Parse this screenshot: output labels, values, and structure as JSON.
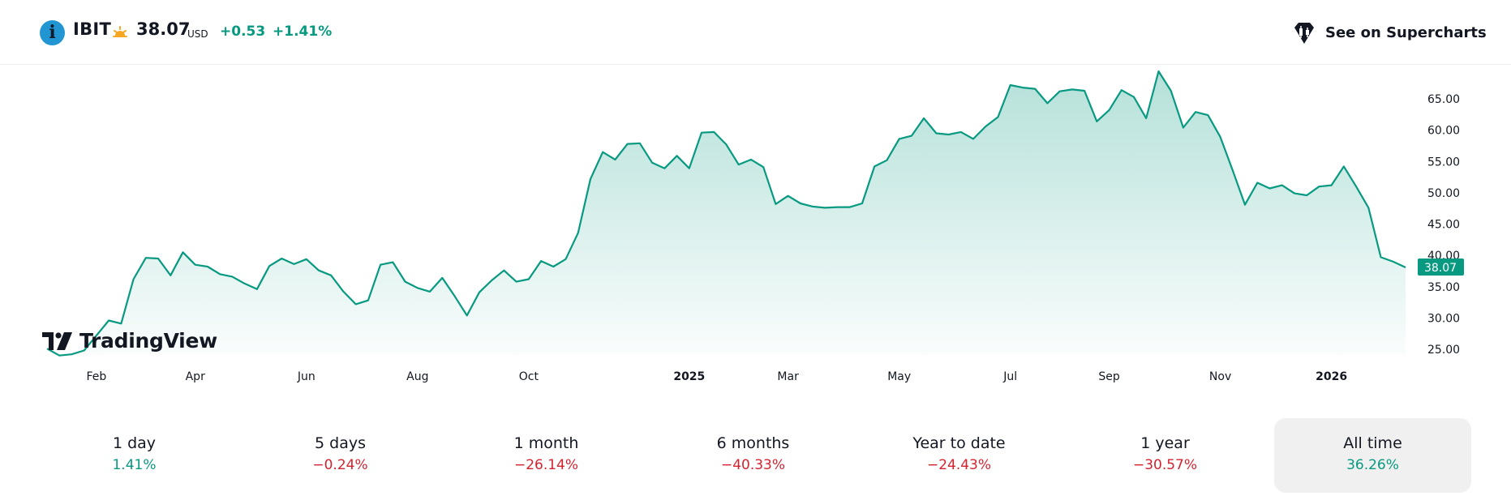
{
  "header": {
    "ticker": "IBIT",
    "price": "38.07",
    "currency": "USD",
    "change": "+0.53",
    "change_pct": "+1.41%",
    "session_icon": "sun-icon",
    "supercharts_label": "See on Supercharts"
  },
  "brand": {
    "logo_text": "TradingView"
  },
  "colors": {
    "line": "#089981",
    "positive": "#089981",
    "negative": "#d32330",
    "price_label_bg": "#089981",
    "info_icon": "#2196d3"
  },
  "chart_data": {
    "type": "area",
    "y_ticks": [
      "65.00",
      "60.00",
      "55.00",
      "50.00",
      "45.00",
      "40.00",
      "35.00",
      "30.00",
      "25.00"
    ],
    "ylim": [
      25,
      70
    ],
    "last_price_label": "38.07",
    "x_tick_labels": [
      {
        "label": "Feb",
        "bold": false,
        "idx": 4
      },
      {
        "label": "Apr",
        "bold": false,
        "idx": 12
      },
      {
        "label": "Jun",
        "bold": false,
        "idx": 21
      },
      {
        "label": "Aug",
        "bold": false,
        "idx": 30
      },
      {
        "label": "Oct",
        "bold": false,
        "idx": 39
      },
      {
        "label": "2025",
        "bold": true,
        "idx": 52
      },
      {
        "label": "Mar",
        "bold": false,
        "idx": 60
      },
      {
        "label": "May",
        "bold": false,
        "idx": 69
      },
      {
        "label": "Jul",
        "bold": false,
        "idx": 78
      },
      {
        "label": "Sep",
        "bold": false,
        "idx": 86
      },
      {
        "label": "Nov",
        "bold": false,
        "idx": 95
      },
      {
        "label": "2026",
        "bold": true,
        "idx": 104
      }
    ],
    "values": [
      25.1,
      24.0,
      24.2,
      24.8,
      27.2,
      29.6,
      29.1,
      36.2,
      39.6,
      39.5,
      36.8,
      40.5,
      38.5,
      38.2,
      37.0,
      36.6,
      35.5,
      34.6,
      38.3,
      39.5,
      38.6,
      39.4,
      37.6,
      36.8,
      34.2,
      32.2,
      32.8,
      38.5,
      38.9,
      35.8,
      34.8,
      34.2,
      36.4,
      33.5,
      30.4,
      34.1,
      36.0,
      37.6,
      35.8,
      36.2,
      39.1,
      38.2,
      39.4,
      43.6,
      52.2,
      56.5,
      55.3,
      57.8,
      57.9,
      54.8,
      53.9,
      55.9,
      53.9,
      59.6,
      59.7,
      57.7,
      54.5,
      55.3,
      54.1,
      48.2,
      49.5,
      48.3,
      47.8,
      47.6,
      47.7,
      47.7,
      48.3,
      54.2,
      55.2,
      58.6,
      59.1,
      61.9,
      59.5,
      59.3,
      59.7,
      58.6,
      60.6,
      62.1,
      67.2,
      66.8,
      66.6,
      64.3,
      66.2,
      66.5,
      66.3,
      61.4,
      63.2,
      66.4,
      65.3,
      61.9,
      69.4,
      66.3,
      60.4,
      62.9,
      62.4,
      58.9,
      53.6,
      48.1,
      51.6,
      50.7,
      51.2,
      49.9,
      49.6,
      51.0,
      51.2,
      54.2,
      51.0,
      47.6,
      39.7,
      39.0,
      38.07
    ]
  },
  "periods": [
    {
      "label": "1 day",
      "value": "1.41%",
      "sign": "pos"
    },
    {
      "label": "5 days",
      "value": "−0.24%",
      "sign": "neg"
    },
    {
      "label": "1 month",
      "value": "−26.14%",
      "sign": "neg"
    },
    {
      "label": "6 months",
      "value": "−40.33%",
      "sign": "neg"
    },
    {
      "label": "Year to date",
      "value": "−24.43%",
      "sign": "neg"
    },
    {
      "label": "1 year",
      "value": "−30.57%",
      "sign": "neg"
    },
    {
      "label": "All time",
      "value": "36.26%",
      "sign": "pos",
      "active": true
    }
  ]
}
